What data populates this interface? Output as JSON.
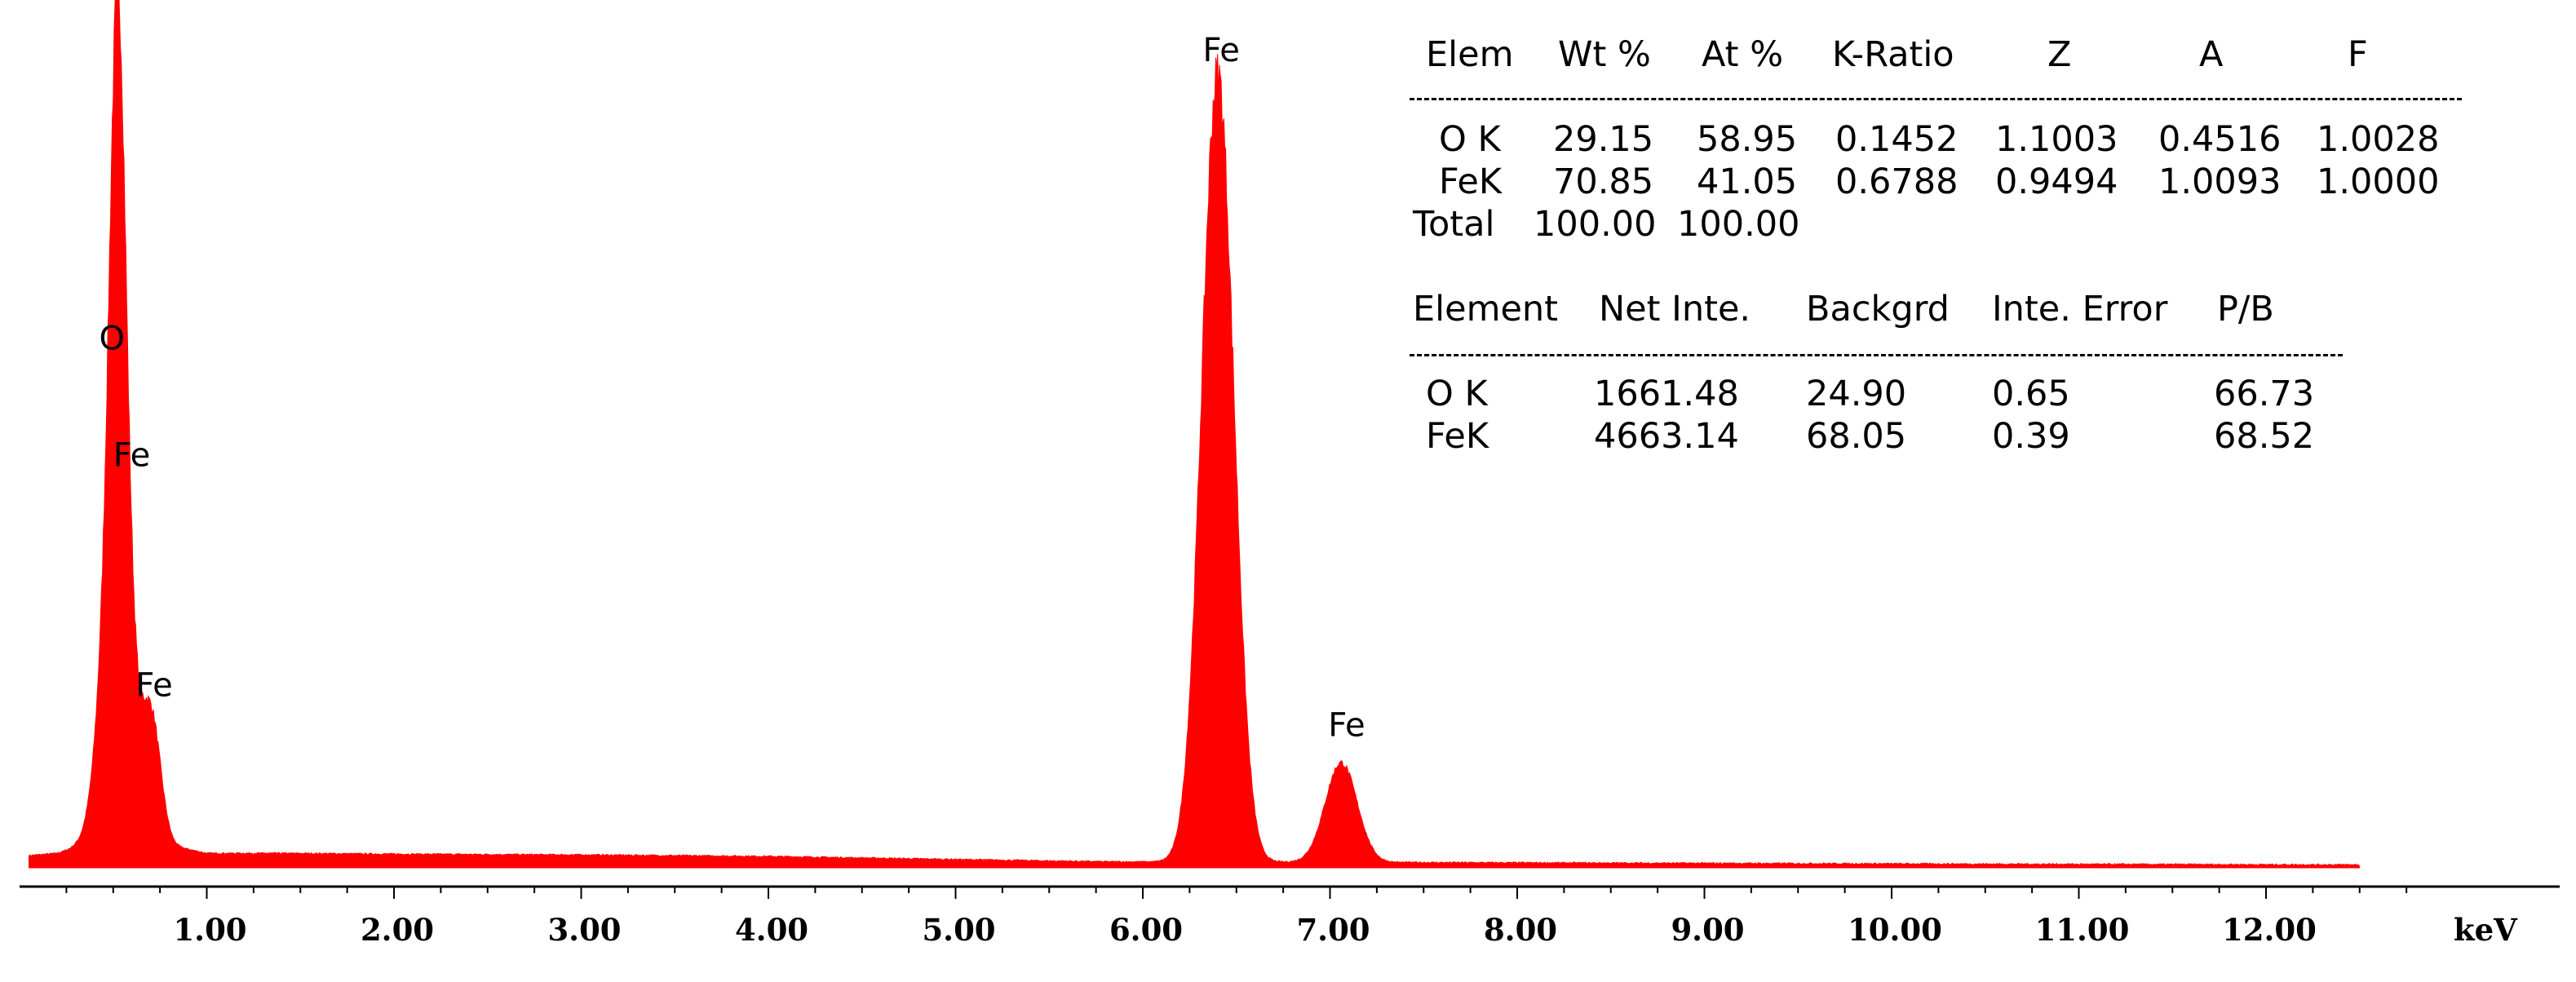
{
  "chart_data": {
    "type": "area",
    "title": "",
    "xlabel": "keV",
    "ylabel": "",
    "xlim": [
      0.0,
      12.5
    ],
    "ylim": [
      0,
      5200
    ],
    "x_ticks": [
      "1.00",
      "2.00",
      "3.00",
      "4.00",
      "5.00",
      "6.00",
      "7.00",
      "8.00",
      "9.00",
      "10.00",
      "11.00",
      "12.00"
    ],
    "color": "#ff0000",
    "background_counts": [
      [
        0.05,
        80
      ],
      [
        0.2,
        95
      ],
      [
        0.3,
        130
      ],
      [
        0.7,
        175
      ],
      [
        1.0,
        95
      ],
      [
        1.4,
        95
      ],
      [
        2.0,
        90
      ],
      [
        3.0,
        85
      ],
      [
        4.0,
        75
      ],
      [
        5.0,
        55
      ],
      [
        5.8,
        40
      ],
      [
        7.5,
        35
      ],
      [
        9.0,
        30
      ],
      [
        10.5,
        25
      ],
      [
        12.5,
        20
      ]
    ],
    "peaks": [
      {
        "label": "O",
        "kev": 0.525,
        "counts": 3150,
        "width": 0.04
      },
      {
        "label": "Fe",
        "kev": 0.52,
        "counts": 2450,
        "width": 0.075
      },
      {
        "label": "Fe",
        "kev": 0.705,
        "counts": 770,
        "width": 0.05
      },
      {
        "label": "Fe",
        "kev": 6.4,
        "counts": 5150,
        "width": 0.085
      },
      {
        "label": "Fe",
        "kev": 7.06,
        "counts": 650,
        "width": 0.085
      }
    ],
    "peak_labels": [
      {
        "text": "O",
        "kev": 0.425,
        "counts": 3380
      },
      {
        "text": "Fe",
        "kev": 0.5,
        "counts": 2620
      },
      {
        "text": "Fe",
        "kev": 0.62,
        "counts": 1120
      },
      {
        "text": "Fe",
        "kev": 6.32,
        "counts": 5260
      },
      {
        "text": "Fe",
        "kev": 6.99,
        "counts": 860
      }
    ]
  },
  "quant_table": {
    "headers": [
      "Elem",
      "Wt %",
      "At %",
      "K-Ratio",
      "Z",
      "A",
      "F"
    ],
    "rows": [
      [
        "O K",
        "29.15",
        "58.95",
        "0.1452",
        "1.1003",
        "0.4516",
        "1.0028"
      ],
      [
        "FeK",
        "70.85",
        "41.05",
        "0.6788",
        "0.9494",
        "1.0093",
        "1.0000"
      ]
    ],
    "total": [
      "Total",
      "100.00",
      "100.00"
    ]
  },
  "intensity_table": {
    "headers": [
      "Element",
      "Net Inte.",
      "Backgrd",
      "Inte. Error",
      "P/B"
    ],
    "rows": [
      [
        "O K",
        "1661.48",
        "24.90",
        "0.65",
        "66.73"
      ],
      [
        "FeK",
        "4663.14",
        "68.05",
        "0.39",
        "68.52"
      ]
    ]
  }
}
